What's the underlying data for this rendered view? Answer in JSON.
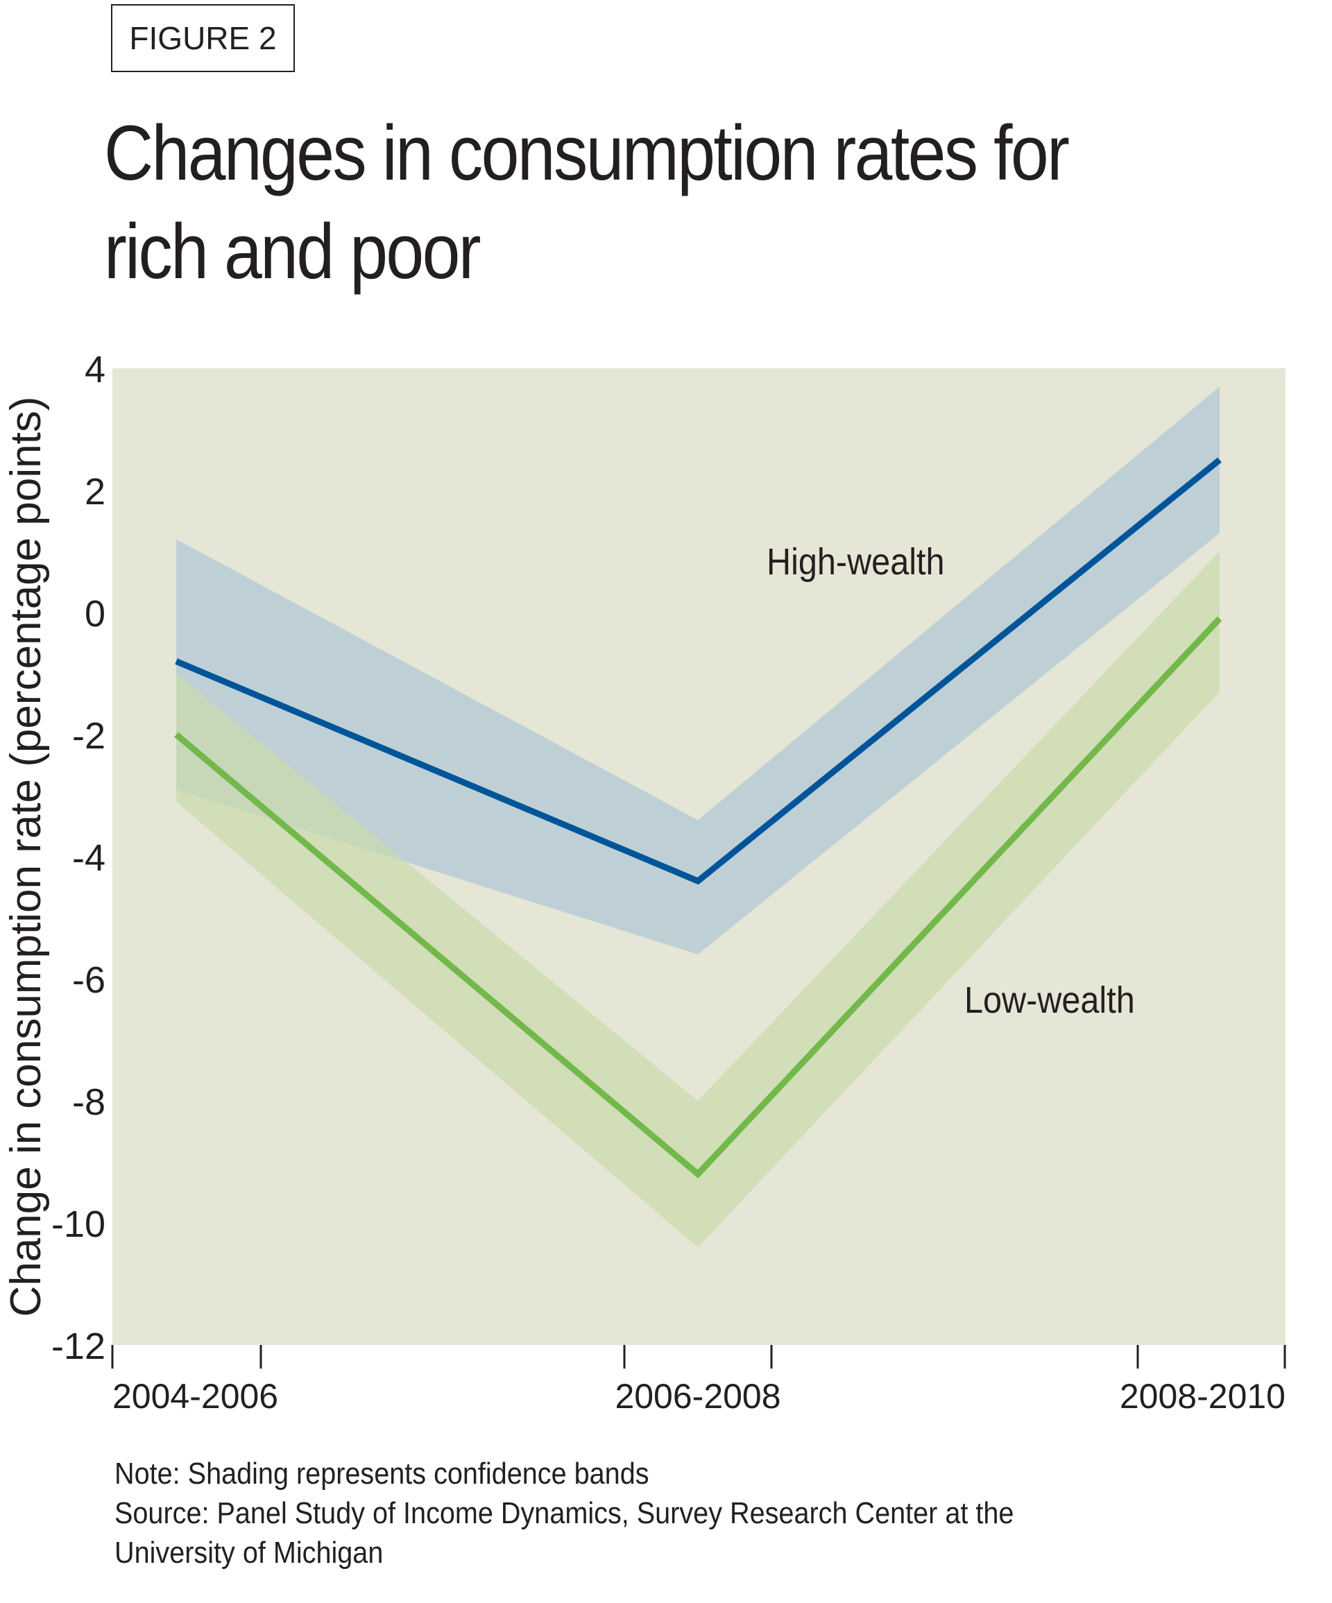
{
  "figure_label": "FIGURE 2",
  "chart_data": {
    "type": "line",
    "title": "Changes in consumption rates for rich and poor",
    "ylabel": "Change in consumption rate (percentage points)",
    "xlabel": "",
    "categories": [
      "2004-2006",
      "2006-2008",
      "2008-2010"
    ],
    "ylim": [
      -12,
      4
    ],
    "yticks": [
      4,
      2,
      0,
      -2,
      -4,
      -6,
      -8,
      -10,
      -12
    ],
    "grid": false,
    "legend": "inline labels",
    "background_color": "#e5e6d5",
    "series": [
      {
        "name": "High-wealth",
        "values": [
          -0.8,
          -4.4,
          2.5
        ],
        "upper": [
          1.2,
          -3.4,
          3.7
        ],
        "lower": [
          -2.9,
          -5.6,
          1.3
        ],
        "color": "#00549a",
        "band_color": "#b9cdd6"
      },
      {
        "name": "Low-wealth",
        "values": [
          -2.0,
          -9.2,
          -0.1
        ],
        "upper": [
          -1.0,
          -8.0,
          1.0
        ],
        "lower": [
          -3.1,
          -10.4,
          -1.3
        ],
        "color": "#72b84a",
        "band_color": "#c9dbad"
      }
    ]
  },
  "notes": [
    "Note: Shading represents confidence bands",
    "Source: Panel Study of Income Dynamics, Survey Research Center at the",
    "University of Michigan"
  ]
}
